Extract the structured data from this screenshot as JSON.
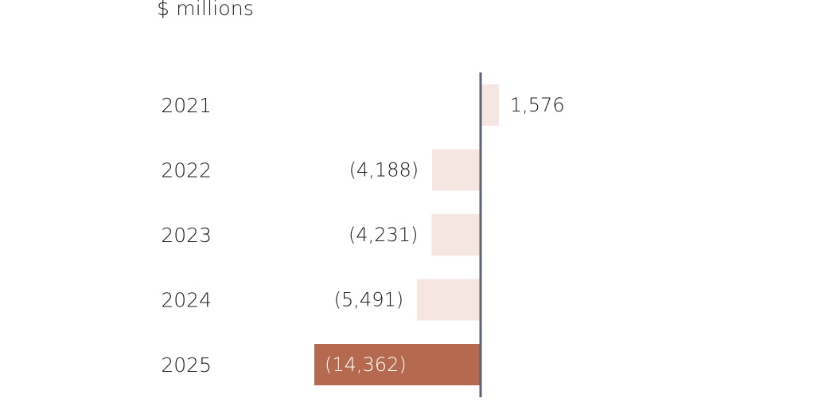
{
  "chart_data": {
    "type": "bar",
    "orientation": "horizontal",
    "unit_label": "$ millions",
    "categories": [
      "2021",
      "2022",
      "2023",
      "2024",
      "2025"
    ],
    "values": [
      1576,
      -4188,
      -4231,
      -5491,
      -14362
    ],
    "value_labels": [
      "1,576",
      "(4,188)",
      "(4,231)",
      "(5,491)",
      "(14,362)"
    ],
    "highlight_index": 4,
    "colors": {
      "default_bar": "#f5e6e2",
      "highlight_bar": "#b5694f",
      "axis_line": "#5a6172",
      "text": "#1a1a1a",
      "highlight_text": "#ffffff"
    },
    "grid": false,
    "legend": "none"
  }
}
